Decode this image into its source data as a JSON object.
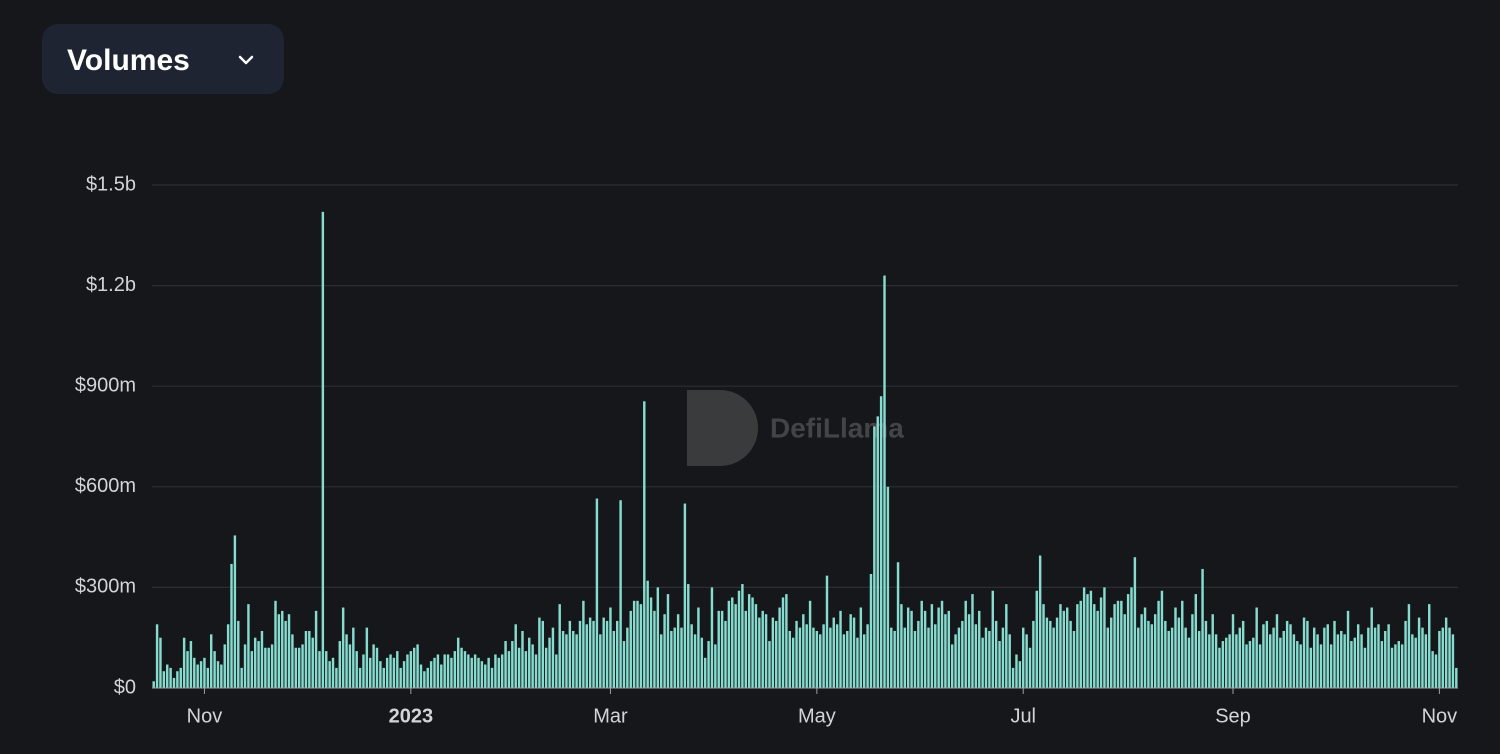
{
  "chart_data": {
    "type": "bar",
    "title": "Volumes",
    "watermark": "DefiLlama",
    "color": "#86dccf",
    "grid": true,
    "ylim": [
      0,
      1500000000.0
    ],
    "yticks": [
      {
        "value": 0,
        "label": "$0"
      },
      {
        "value": 300000000.0,
        "label": "$300m"
      },
      {
        "value": 600000000.0,
        "label": "$600m"
      },
      {
        "value": 900000000.0,
        "label": "$900m"
      },
      {
        "value": 1200000000.0,
        "label": "$1.2b"
      },
      {
        "value": 1500000000.0,
        "label": "$1.5b"
      }
    ],
    "categories": [
      null,
      null,
      null,
      null,
      null,
      null,
      null,
      null,
      null,
      null,
      null,
      null,
      null,
      null,
      null,
      "Nov",
      null,
      null,
      null,
      null,
      null,
      null,
      null,
      null,
      null,
      null,
      null,
      null,
      null,
      null,
      null,
      null,
      null,
      null,
      null,
      null,
      null,
      null,
      null,
      null,
      null,
      null,
      null,
      null,
      null,
      null,
      null,
      null,
      null,
      null,
      null,
      null,
      null,
      null,
      null,
      null,
      null,
      null,
      null,
      null,
      null,
      null,
      null,
      null,
      null,
      null,
      null,
      null,
      null,
      null,
      null,
      null,
      null,
      null,
      null,
      null,
      "2023",
      null,
      null,
      null,
      null,
      null,
      null,
      null,
      null,
      null,
      null,
      null,
      null,
      null,
      null,
      null,
      null,
      null,
      null,
      null,
      null,
      null,
      null,
      null,
      null,
      null,
      null,
      null,
      null,
      null,
      null,
      null,
      null,
      null,
      null,
      null,
      null,
      null,
      null,
      null,
      null,
      null,
      null,
      null,
      null,
      null,
      null,
      null,
      null,
      null,
      null,
      null,
      null,
      null,
      null,
      null,
      null,
      null,
      null,
      "Mar",
      null,
      null,
      null,
      null,
      null,
      null,
      null,
      null,
      null,
      null,
      null,
      null,
      null,
      null,
      null,
      null,
      null,
      null,
      null,
      null,
      null,
      null,
      null,
      null,
      null,
      null,
      null,
      null,
      null,
      null,
      null,
      null,
      null,
      null,
      null,
      null,
      null,
      null,
      null,
      null,
      null,
      null,
      null,
      null,
      null,
      null,
      null,
      null,
      null,
      null,
      null,
      null,
      null,
      null,
      null,
      null,
      null,
      null,
      null,
      null,
      "May",
      null,
      null,
      null,
      null,
      null,
      null,
      null,
      null,
      null,
      null,
      null,
      null,
      null,
      null,
      null,
      null,
      null,
      null,
      null,
      null,
      null,
      null,
      null,
      null,
      null,
      null,
      null,
      null,
      null,
      null,
      null,
      null,
      null,
      null,
      null,
      null,
      null,
      null,
      null,
      null,
      null,
      null,
      null,
      null,
      null,
      null,
      null,
      null,
      null,
      null,
      null,
      null,
      null,
      null,
      null,
      null,
      null,
      null,
      null,
      null,
      "Jul",
      null,
      null,
      null,
      null,
      null,
      null,
      null,
      null,
      null,
      null,
      null,
      null,
      null,
      null,
      null,
      null,
      null,
      null,
      null,
      null,
      null,
      null,
      null,
      null,
      null,
      null,
      null,
      null,
      null,
      null,
      null,
      null,
      null,
      null,
      null,
      null,
      null,
      null,
      null,
      null,
      null,
      null,
      null,
      null,
      null,
      null,
      null,
      null,
      null,
      null,
      null,
      null,
      null,
      null,
      null,
      null,
      null,
      null,
      null,
      null,
      null,
      "Sep",
      null,
      null,
      null,
      null,
      null,
      null,
      null,
      null,
      null,
      null,
      null,
      null,
      null,
      null,
      null,
      null,
      null,
      null,
      null,
      null,
      null,
      null,
      null,
      null,
      null,
      null,
      null,
      null,
      null,
      null,
      null,
      null,
      null,
      null,
      null,
      null,
      null,
      null,
      null,
      null,
      null,
      null,
      null,
      null,
      null,
      null,
      null,
      null,
      null,
      null,
      null,
      null,
      null,
      null,
      null,
      null,
      null,
      null,
      null,
      null,
      "Nov",
      null,
      null,
      null,
      null,
      null
    ],
    "values": [
      20000000.0,
      190000000.0,
      150000000.0,
      50000000.0,
      70000000.0,
      60000000.0,
      30000000.0,
      50000000.0,
      60000000.0,
      150000000.0,
      110000000.0,
      140000000.0,
      90000000.0,
      70000000.0,
      80000000.0,
      90000000.0,
      60000000.0,
      160000000.0,
      110000000.0,
      80000000.0,
      70000000.0,
      130000000.0,
      190000000.0,
      370000000.0,
      455000000.0,
      200000000.0,
      60000000.0,
      130000000.0,
      250000000.0,
      110000000.0,
      150000000.0,
      140000000.0,
      170000000.0,
      120000000.0,
      120000000.0,
      130000000.0,
      260000000.0,
      220000000.0,
      230000000.0,
      200000000.0,
      220000000.0,
      160000000.0,
      120000000.0,
      120000000.0,
      130000000.0,
      170000000.0,
      170000000.0,
      150000000.0,
      230000000.0,
      110000000.0,
      1420000000.0,
      110000000.0,
      80000000.0,
      90000000.0,
      60000000.0,
      140000000.0,
      240000000.0,
      160000000.0,
      130000000.0,
      180000000.0,
      110000000.0,
      60000000.0,
      100000000.0,
      180000000.0,
      90000000.0,
      130000000.0,
      120000000.0,
      80000000.0,
      60000000.0,
      90000000.0,
      100000000.0,
      90000000.0,
      110000000.0,
      60000000.0,
      80000000.0,
      100000000.0,
      110000000.0,
      120000000.0,
      130000000.0,
      70000000.0,
      50000000.0,
      60000000.0,
      80000000.0,
      90000000.0,
      100000000.0,
      70000000.0,
      100000000.0,
      100000000.0,
      90000000.0,
      110000000.0,
      150000000.0,
      120000000.0,
      110000000.0,
      100000000.0,
      90000000.0,
      100000000.0,
      90000000.0,
      80000000.0,
      70000000.0,
      90000000.0,
      60000000.0,
      100000000.0,
      90000000.0,
      100000000.0,
      140000000.0,
      110000000.0,
      140000000.0,
      190000000.0,
      120000000.0,
      170000000.0,
      110000000.0,
      150000000.0,
      130000000.0,
      100000000.0,
      210000000.0,
      200000000.0,
      120000000.0,
      150000000.0,
      180000000.0,
      100000000.0,
      250000000.0,
      170000000.0,
      160000000.0,
      200000000.0,
      170000000.0,
      160000000.0,
      200000000.0,
      260000000.0,
      190000000.0,
      210000000.0,
      200000000.0,
      565000000.0,
      160000000.0,
      210000000.0,
      200000000.0,
      240000000.0,
      170000000.0,
      200000000.0,
      560000000.0,
      140000000.0,
      180000000.0,
      230000000.0,
      260000000.0,
      260000000.0,
      250000000.0,
      855000000.0,
      320000000.0,
      270000000.0,
      230000000.0,
      300000000.0,
      160000000.0,
      220000000.0,
      280000000.0,
      170000000.0,
      180000000.0,
      220000000.0,
      180000000.0,
      550000000.0,
      310000000.0,
      190000000.0,
      160000000.0,
      240000000.0,
      150000000.0,
      90000000.0,
      140000000.0,
      300000000.0,
      130000000.0,
      230000000.0,
      230000000.0,
      200000000.0,
      260000000.0,
      270000000.0,
      250000000.0,
      290000000.0,
      310000000.0,
      230000000.0,
      280000000.0,
      270000000.0,
      250000000.0,
      210000000.0,
      230000000.0,
      220000000.0,
      140000000.0,
      210000000.0,
      200000000.0,
      240000000.0,
      270000000.0,
      280000000.0,
      170000000.0,
      150000000.0,
      200000000.0,
      180000000.0,
      220000000.0,
      190000000.0,
      260000000.0,
      180000000.0,
      170000000.0,
      160000000.0,
      190000000.0,
      335000000.0,
      180000000.0,
      210000000.0,
      190000000.0,
      230000000.0,
      160000000.0,
      170000000.0,
      220000000.0,
      210000000.0,
      150000000.0,
      240000000.0,
      160000000.0,
      190000000.0,
      340000000.0,
      780000000.0,
      810000000.0,
      870000000.0,
      1230000000.0,
      600000000.0,
      180000000.0,
      170000000.0,
      375000000.0,
      250000000.0,
      180000000.0,
      240000000.0,
      230000000.0,
      170000000.0,
      200000000.0,
      260000000.0,
      230000000.0,
      180000000.0,
      250000000.0,
      190000000.0,
      240000000.0,
      260000000.0,
      220000000.0,
      230000000.0,
      130000000.0,
      160000000.0,
      180000000.0,
      200000000.0,
      260000000.0,
      220000000.0,
      280000000.0,
      190000000.0,
      230000000.0,
      150000000.0,
      180000000.0,
      170000000.0,
      290000000.0,
      200000000.0,
      140000000.0,
      180000000.0,
      250000000.0,
      160000000.0,
      60000000.0,
      100000000.0,
      80000000.0,
      180000000.0,
      160000000.0,
      120000000.0,
      200000000.0,
      290000000.0,
      395000000.0,
      250000000.0,
      210000000.0,
      200000000.0,
      180000000.0,
      210000000.0,
      250000000.0,
      230000000.0,
      240000000.0,
      200000000.0,
      170000000.0,
      250000000.0,
      260000000.0,
      300000000.0,
      280000000.0,
      290000000.0,
      250000000.0,
      230000000.0,
      270000000.0,
      300000000.0,
      180000000.0,
      210000000.0,
      250000000.0,
      260000000.0,
      260000000.0,
      220000000.0,
      280000000.0,
      300000000.0,
      390000000.0,
      180000000.0,
      220000000.0,
      240000000.0,
      200000000.0,
      190000000.0,
      220000000.0,
      260000000.0,
      290000000.0,
      200000000.0,
      170000000.0,
      180000000.0,
      240000000.0,
      210000000.0,
      260000000.0,
      180000000.0,
      150000000.0,
      220000000.0,
      280000000.0,
      170000000.0,
      355000000.0,
      200000000.0,
      160000000.0,
      220000000.0,
      160000000.0,
      120000000.0,
      140000000.0,
      150000000.0,
      160000000.0,
      220000000.0,
      160000000.0,
      180000000.0,
      200000000.0,
      130000000.0,
      140000000.0,
      150000000.0,
      240000000.0,
      130000000.0,
      190000000.0,
      200000000.0,
      160000000.0,
      180000000.0,
      220000000.0,
      150000000.0,
      170000000.0,
      200000000.0,
      190000000.0,
      160000000.0,
      140000000.0,
      130000000.0,
      210000000.0,
      200000000.0,
      120000000.0,
      180000000.0,
      160000000.0,
      130000000.0,
      180000000.0,
      190000000.0,
      130000000.0,
      200000000.0,
      160000000.0,
      170000000.0,
      160000000.0,
      230000000.0,
      140000000.0,
      150000000.0,
      190000000.0,
      160000000.0,
      120000000.0,
      180000000.0,
      240000000.0,
      180000000.0,
      190000000.0,
      140000000.0,
      170000000.0,
      190000000.0,
      120000000.0,
      130000000.0,
      140000000.0,
      130000000.0,
      200000000.0,
      250000000.0,
      160000000.0,
      150000000.0,
      210000000.0,
      180000000.0,
      160000000.0,
      250000000.0,
      110000000.0,
      100000000.0,
      170000000.0,
      180000000.0,
      210000000.0,
      180000000.0,
      160000000.0,
      60000000.0
    ]
  }
}
